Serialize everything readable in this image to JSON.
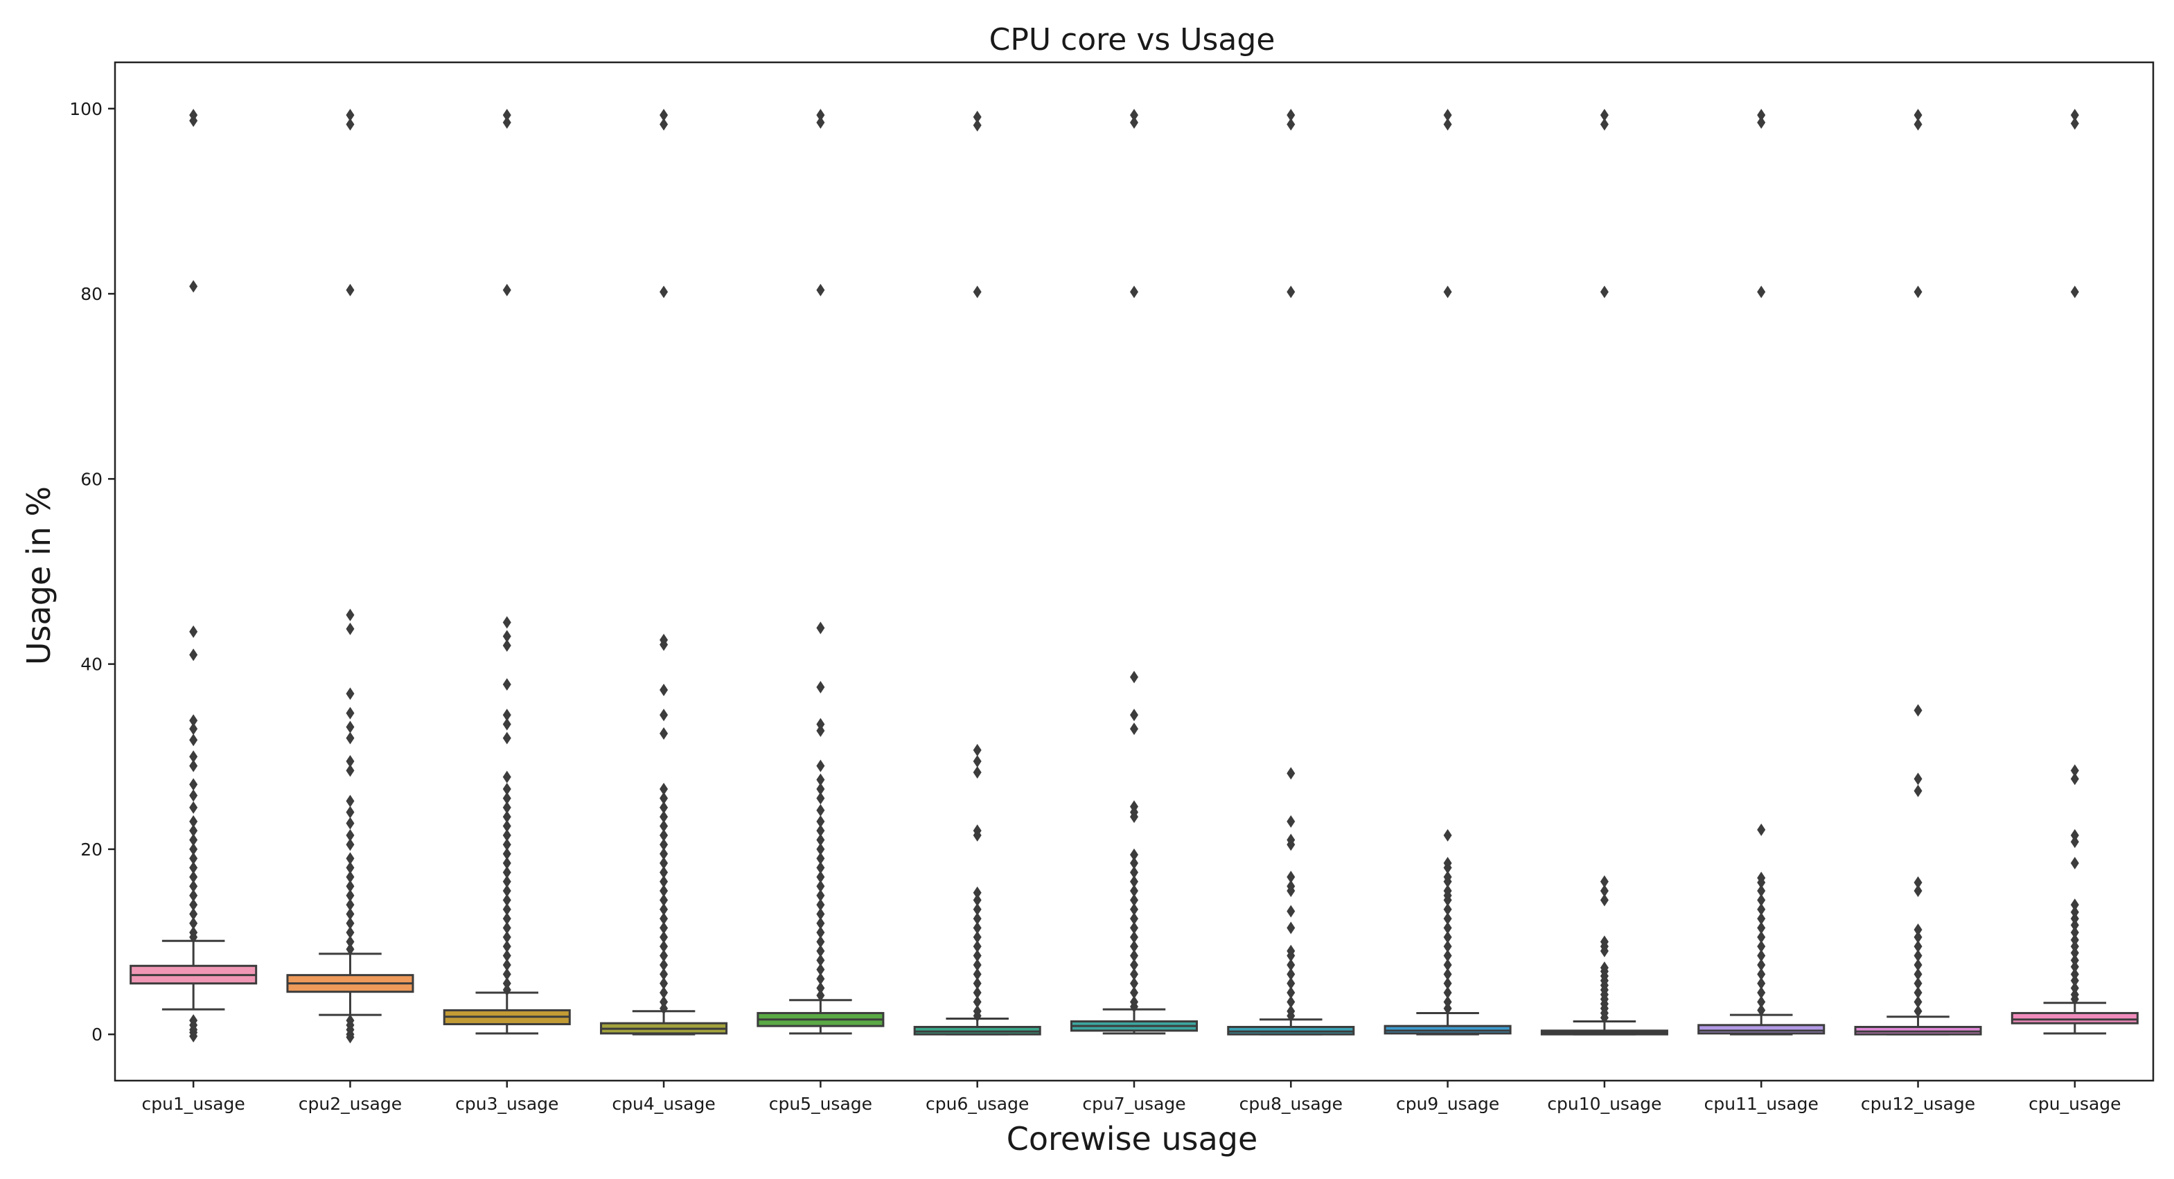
{
  "chart_data": {
    "type": "box",
    "title": "CPU core vs Usage",
    "xlabel": "Corewise usage",
    "ylabel": "Usage in %",
    "ylim": [
      -5,
      105
    ],
    "yticks": [
      0,
      20,
      40,
      60,
      80,
      100
    ],
    "grid": false,
    "categories": [
      "cpu1_usage",
      "cpu2_usage",
      "cpu3_usage",
      "cpu4_usage",
      "cpu5_usage",
      "cpu6_usage",
      "cpu7_usage",
      "cpu8_usage",
      "cpu9_usage",
      "cpu10_usage",
      "cpu11_usage",
      "cpu12_usage",
      "cpu_usage"
    ],
    "colors": [
      "#f097b6",
      "#ee9a5a",
      "#c39b35",
      "#a3a33d",
      "#5aaa45",
      "#3aa78a",
      "#3ca7a0",
      "#3aa2b5",
      "#3d9ccf",
      "#7ea1e3",
      "#b39ae6",
      "#e088d6",
      "#f08cbc"
    ],
    "series": [
      {
        "name": "cpu1_usage",
        "whisker_low": 2.7,
        "q1": 5.5,
        "median": 6.4,
        "q3": 7.4,
        "whisker_high": 10.1,
        "outliers": [
          99.3,
          98.7,
          80.8,
          43.5,
          41,
          33.9,
          33,
          31.8,
          30,
          29,
          27,
          25.8,
          24.5,
          23,
          22,
          21,
          20,
          19,
          18,
          17,
          16,
          15,
          14,
          13,
          12,
          11,
          10.5,
          1.5,
          1,
          0.5,
          0.2,
          -0.2
        ]
      },
      {
        "name": "cpu2_usage",
        "whisker_low": 2.1,
        "q1": 4.6,
        "median": 5.5,
        "q3": 6.4,
        "whisker_high": 8.7,
        "outliers": [
          99.3,
          98.3,
          80.4,
          45.3,
          43.8,
          36.8,
          34.7,
          33.2,
          32,
          29.5,
          28.5,
          25.2,
          24,
          22.8,
          21.5,
          20.5,
          19,
          18,
          17,
          16,
          15,
          14,
          13,
          12,
          11,
          10,
          9.2,
          1.5,
          1,
          0.5,
          0,
          -0.3
        ]
      },
      {
        "name": "cpu3_usage",
        "whisker_low": 0.1,
        "q1": 1.1,
        "median": 1.9,
        "q3": 2.6,
        "whisker_high": 4.5,
        "outliers": [
          99.3,
          98.5,
          80.4,
          44.5,
          43,
          42,
          37.8,
          34.5,
          33.5,
          32,
          27.8,
          26.5,
          25.5,
          24.5,
          23.5,
          22.5,
          21.5,
          20.5,
          19.5,
          18.5,
          17.5,
          16.5,
          15.5,
          14.5,
          13.5,
          12.5,
          11.5,
          10.5,
          9.5,
          8.5,
          7.5,
          6.5,
          5.5,
          4.8
        ]
      },
      {
        "name": "cpu4_usage",
        "whisker_low": 0,
        "q1": 0.1,
        "median": 0.6,
        "q3": 1.2,
        "whisker_high": 2.5,
        "outliers": [
          99.3,
          98.3,
          80.2,
          42.6,
          42.1,
          37.2,
          34.5,
          32.5,
          26.5,
          25.5,
          24.5,
          23.5,
          22.5,
          21.5,
          20.5,
          19.5,
          18.5,
          17.5,
          16.5,
          15.5,
          14.5,
          13.5,
          12.5,
          11.5,
          10.5,
          9.5,
          8.5,
          7.5,
          6.5,
          5.5,
          4.5,
          3.5,
          2.8
        ]
      },
      {
        "name": "cpu5_usage",
        "whisker_low": 0.1,
        "q1": 0.9,
        "median": 1.6,
        "q3": 2.3,
        "whisker_high": 3.7,
        "outliers": [
          99.3,
          98.5,
          80.4,
          43.9,
          37.5,
          33.5,
          32.8,
          29,
          27.5,
          26.5,
          25.5,
          24.2,
          23,
          22,
          21,
          20,
          19,
          18,
          17,
          16,
          15,
          14,
          13,
          12,
          11,
          10,
          9,
          8,
          7,
          6,
          5,
          4.2
        ]
      },
      {
        "name": "cpu6_usage",
        "whisker_low": 0,
        "q1": 0,
        "median": 0.3,
        "q3": 0.8,
        "whisker_high": 1.7,
        "outliers": [
          99.1,
          98.2,
          80.2,
          30.7,
          29.5,
          28.3,
          22,
          21.5,
          15.3,
          14.5,
          13.5,
          12.5,
          11.5,
          10.5,
          9.5,
          8.5,
          7.5,
          6.5,
          5.5,
          4.5,
          3.5,
          2.5,
          2
        ]
      },
      {
        "name": "cpu7_usage",
        "whisker_low": 0.1,
        "q1": 0.4,
        "median": 0.9,
        "q3": 1.4,
        "whisker_high": 2.7,
        "outliers": [
          99.3,
          98.5,
          80.2,
          38.6,
          34.5,
          33,
          24.6,
          24,
          23.5,
          19.4,
          18.5,
          17.5,
          16.5,
          15.5,
          14.5,
          13.5,
          12.5,
          11.5,
          10.5,
          9.5,
          8.5,
          7.5,
          6.5,
          5.5,
          4.5,
          3.5,
          3
        ]
      },
      {
        "name": "cpu8_usage",
        "whisker_low": 0,
        "q1": 0,
        "median": 0.3,
        "q3": 0.8,
        "whisker_high": 1.6,
        "outliers": [
          99.3,
          98.3,
          80.2,
          28.2,
          23,
          21,
          20.5,
          17,
          16,
          15.5,
          13.3,
          11.5,
          9,
          8.5,
          7.5,
          6.5,
          5.5,
          4.5,
          3.5,
          2.5,
          2
        ]
      },
      {
        "name": "cpu9_usage",
        "whisker_low": 0,
        "q1": 0.1,
        "median": 0.4,
        "q3": 0.9,
        "whisker_high": 2.3,
        "outliers": [
          99.3,
          98.3,
          80.2,
          21.5,
          18.5,
          18,
          17,
          16.5,
          15.5,
          15,
          14.5,
          13.5,
          12.5,
          11.5,
          10.5,
          9.5,
          8.5,
          7.5,
          6.5,
          5.5,
          4.5,
          3.5,
          2.8
        ]
      },
      {
        "name": "cpu10_usage",
        "whisker_low": 0,
        "q1": 0,
        "median": 0.2,
        "q3": 0.4,
        "whisker_high": 1.4,
        "outliers": [
          99.3,
          98.3,
          80.2,
          16.5,
          15.5,
          14.5,
          10,
          9.5,
          9,
          7.2,
          6.8,
          6.3,
          5.8,
          5.3,
          4.8,
          4.3,
          3.8,
          3.3,
          2.8,
          2.3,
          1.8
        ]
      },
      {
        "name": "cpu11_usage",
        "whisker_low": 0,
        "q1": 0.1,
        "median": 0.4,
        "q3": 1,
        "whisker_high": 2.1,
        "outliers": [
          99.3,
          98.5,
          80.2,
          22.1,
          16.9,
          16.4,
          15.5,
          14.5,
          13.5,
          12.5,
          11.5,
          10.5,
          9.5,
          8.5,
          7.5,
          6.5,
          5.5,
          4.5,
          3.5,
          2.6
        ]
      },
      {
        "name": "cpu12_usage",
        "whisker_low": 0,
        "q1": 0,
        "median": 0.3,
        "q3": 0.8,
        "whisker_high": 1.9,
        "outliers": [
          99.3,
          98.3,
          80.2,
          35,
          27.6,
          26.3,
          16.4,
          15.5,
          11.3,
          10.5,
          9.5,
          8.5,
          7.5,
          6.5,
          5.5,
          4.5,
          3.5,
          2.5
        ]
      },
      {
        "name": "cpu_usage",
        "whisker_low": 0.1,
        "q1": 1.2,
        "median": 1.6,
        "q3": 2.3,
        "whisker_high": 3.4,
        "outliers": [
          99.3,
          98.4,
          80.2,
          28.5,
          27.6,
          21.5,
          20.8,
          18.5,
          14,
          13.2,
          12.5,
          11.8,
          11,
          10.2,
          9.5,
          8.8,
          8,
          7.3,
          6.5,
          5.8,
          5,
          4.3,
          3.8
        ]
      }
    ]
  }
}
